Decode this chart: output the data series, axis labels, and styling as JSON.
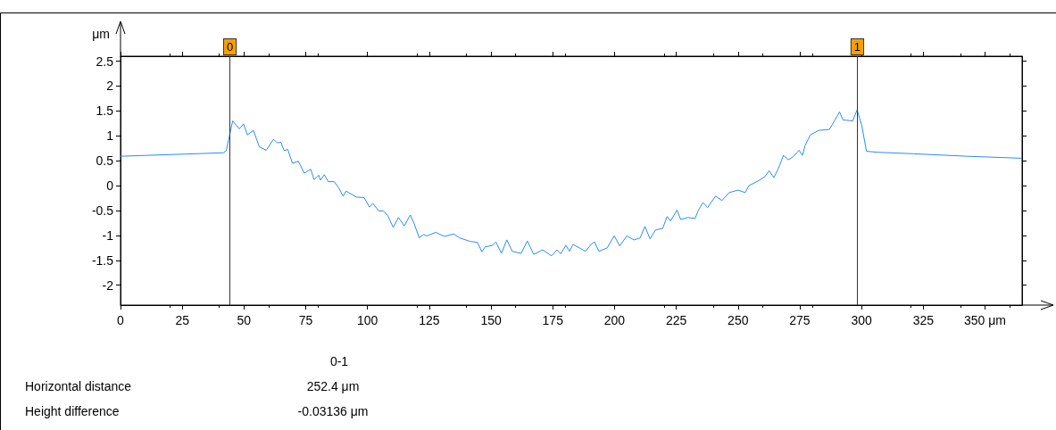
{
  "chart_data": {
    "type": "line",
    "ylabel": "μm",
    "xlim": [
      0,
      365
    ],
    "ylim": [
      -2.4,
      2.6
    ],
    "xticks": [
      0,
      25,
      50,
      75,
      100,
      125,
      150,
      175,
      200,
      225,
      250,
      275,
      300,
      325,
      {
        "value": 350,
        "label": "350 μm"
      }
    ],
    "yticks": [
      -2,
      -1.5,
      -1,
      -0.5,
      0,
      0.5,
      1,
      1.5,
      2,
      2.5
    ],
    "grid": false,
    "marker": "none",
    "line_style": "solid",
    "series": [
      {
        "color": "#2a8cf0",
        "x": [
          0,
          41.7,
          42.8,
          45.4,
          48.1,
          49.8,
          51.4,
          53.8,
          56.2,
          59.0,
          61.9,
          63.5,
          64.9,
          66.3,
          67.7,
          69.6,
          72.0,
          74.4,
          77.0,
          78.4,
          80.2,
          81.0,
          82.5,
          84.1,
          86.5,
          88.3,
          90.1,
          91.3,
          95.5,
          98.6,
          100.8,
          102.2,
          104.6,
          106.4,
          108.2,
          110.4,
          112.5,
          114.9,
          117.3,
          118.8,
          120.9,
          122.7,
          124.0,
          127.6,
          131.2,
          134.9,
          137.3,
          141.5,
          144.5,
          146.3,
          147.6,
          150.6,
          152.0,
          154.2,
          156.4,
          158.6,
          162.2,
          164.7,
          167.3,
          170.9,
          174.5,
          176.7,
          178.2,
          180.3,
          181.8,
          183.2,
          188.3,
          190.5,
          191.9,
          193.7,
          197.0,
          199.9,
          202.1,
          205.0,
          207.9,
          210.4,
          212.3,
          214.4,
          216.6,
          219.5,
          221.3,
          222.7,
          225.3,
          226.8,
          229.7,
          232.6,
          234.0,
          235.8,
          237.7,
          240.9,
          243.5,
          246.4,
          250.0,
          252.9,
          254.4,
          258.0,
          260.9,
          262.6,
          264.5,
          266.3,
          268.4,
          270.3,
          272.1,
          274.7,
          276.1,
          277.1,
          279.3,
          282.7,
          287.0,
          288.9,
          291.1,
          292.5,
          296.4,
          298.2,
          300.1,
          302.0,
          306.6,
          321.1,
          342.9,
          365
        ],
        "values": [
          0.59,
          0.66,
          0.7,
          1.3,
          1.14,
          1.24,
          1.02,
          1.11,
          0.78,
          0.71,
          0.93,
          0.86,
          0.87,
          0.7,
          0.73,
          0.45,
          0.49,
          0.25,
          0.33,
          0.12,
          0.21,
          0.11,
          0.22,
          0.08,
          0.08,
          -0.04,
          -0.21,
          -0.11,
          -0.23,
          -0.24,
          -0.43,
          -0.36,
          -0.51,
          -0.51,
          -0.6,
          -0.84,
          -0.64,
          -0.81,
          -0.59,
          -0.75,
          -1.05,
          -0.98,
          -1.01,
          -0.94,
          -1.02,
          -0.97,
          -1.05,
          -1.12,
          -1.14,
          -1.33,
          -1.23,
          -1.2,
          -1.13,
          -1.36,
          -1.09,
          -1.32,
          -1.36,
          -1.11,
          -1.38,
          -1.29,
          -1.41,
          -1.29,
          -1.37,
          -1.2,
          -1.32,
          -1.18,
          -1.32,
          -1.18,
          -1.13,
          -1.32,
          -1.25,
          -1.01,
          -1.21,
          -1.01,
          -1.09,
          -1.05,
          -0.82,
          -1.07,
          -0.89,
          -0.86,
          -0.62,
          -0.71,
          -0.49,
          -0.68,
          -0.64,
          -0.66,
          -0.49,
          -0.34,
          -0.44,
          -0.21,
          -0.3,
          -0.14,
          -0.09,
          -0.14,
          0.0,
          0.09,
          0.18,
          0.3,
          0.16,
          0.34,
          0.61,
          0.52,
          0.57,
          0.71,
          0.61,
          0.8,
          1.02,
          1.11,
          1.13,
          1.29,
          1.48,
          1.32,
          1.3,
          1.52,
          1.21,
          0.69,
          0.67,
          0.64,
          0.59,
          0.55
        ]
      }
    ],
    "ref_lines": [
      {
        "axis": "x",
        "value": 44.3,
        "color": "#333333"
      },
      {
        "axis": "x",
        "value": 298.3,
        "color": "#333333"
      }
    ],
    "annotations": [
      {
        "text": "0",
        "x": 44.3
      },
      {
        "text": "1",
        "x": 298.3
      },
      "0-1",
      "Horizontal distance",
      "252.4 μm",
      "Height difference",
      "-0.03136 μm"
    ]
  }
}
